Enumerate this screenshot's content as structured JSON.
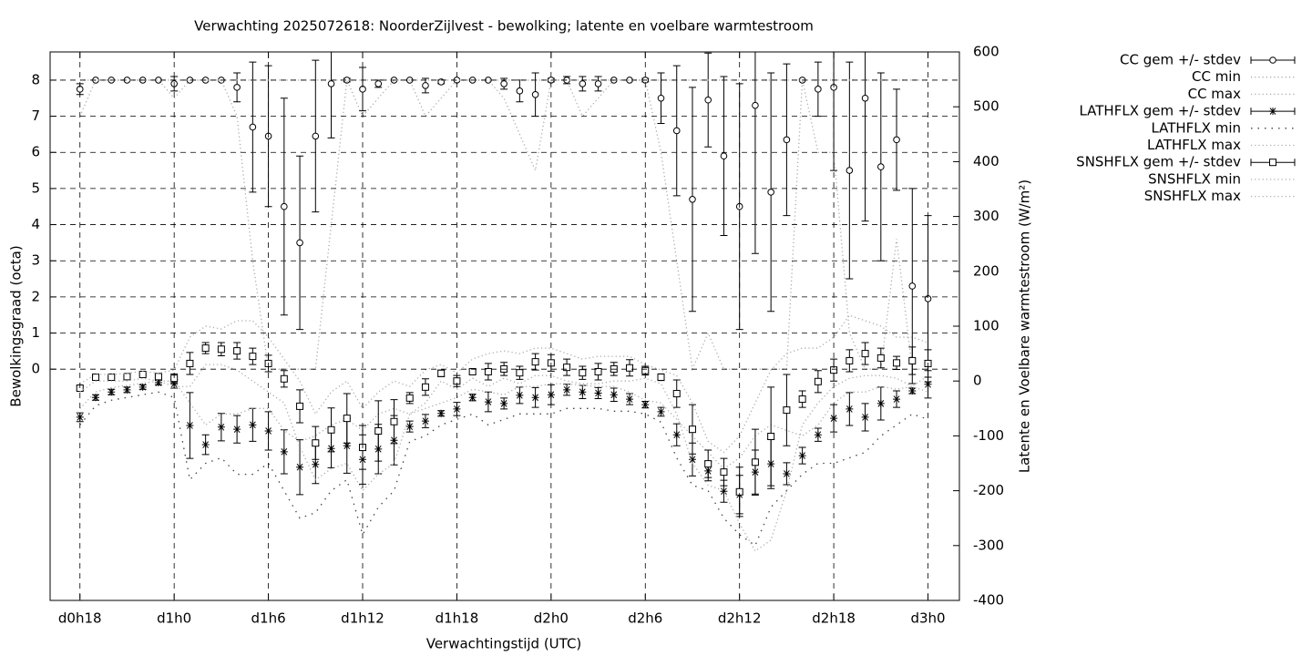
{
  "chart_data": {
    "type": "errorbar",
    "title": "Verwachting 2025072618: NoorderZijlvest - bewolking; latente en voelbare warmtestroom",
    "xlabel": "Verwachtingstijd (UTC)",
    "ylabel": "Bewolkingsgraad (octa)",
    "y2label": "Latente en Voelbare warmtestroom (W/m²)",
    "x": [
      18,
      19,
      20,
      21,
      22,
      23,
      24,
      25,
      26,
      27,
      28,
      29,
      30,
      31,
      32,
      33,
      34,
      35,
      36,
      37,
      38,
      39,
      40,
      41,
      42,
      43,
      44,
      45,
      46,
      47,
      48,
      49,
      50,
      51,
      52,
      53,
      54,
      55,
      56,
      57,
      58,
      59,
      60,
      61,
      62,
      63,
      64,
      65,
      66,
      67,
      68,
      69,
      70,
      71,
      72
    ],
    "xlim": [
      16.1,
      74
    ],
    "xticks": [
      {
        "value": 18,
        "label": "d0h18"
      },
      {
        "value": 24,
        "label": "d1h0"
      },
      {
        "value": 30,
        "label": "d1h6"
      },
      {
        "value": 36,
        "label": "d1h12"
      },
      {
        "value": 42,
        "label": "d1h18"
      },
      {
        "value": 48,
        "label": "d2h0"
      },
      {
        "value": 54,
        "label": "d2h6"
      },
      {
        "value": 60,
        "label": "d2h12"
      },
      {
        "value": 66,
        "label": "d2h18"
      },
      {
        "value": 72,
        "label": "d3h0"
      }
    ],
    "ylim": [
      -6.4,
      8.78
    ],
    "yticks": [
      0,
      1,
      2,
      3,
      4,
      5,
      6,
      7,
      8
    ],
    "y2lim": [
      -400,
      600
    ],
    "y2ticks": [
      -400,
      -300,
      -200,
      -100,
      0,
      100,
      200,
      300,
      400,
      500,
      600
    ],
    "grid": true,
    "legend": "outside-top-right",
    "series": [
      {
        "name": "CC gem +/- stdev",
        "style": "errorbar",
        "marker": "circle",
        "color": "#000000",
        "values": [
          7.75,
          8,
          8,
          8,
          8,
          8,
          7.9,
          8,
          8,
          8,
          7.8,
          6.7,
          6.45,
          4.5,
          3.5,
          6.45,
          7.9,
          8,
          7.75,
          7.9,
          8,
          8,
          7.85,
          7.95,
          8,
          8,
          8,
          7.9,
          7.7,
          7.6,
          8,
          8,
          7.9,
          7.9,
          8,
          8,
          8,
          7.5,
          6.6,
          4.7,
          7.45,
          5.9,
          4.5,
          7.3,
          4.9,
          6.35,
          8,
          7.75,
          7.8,
          5.5,
          7.5,
          5.6,
          6.35,
          2.3,
          1.95
        ],
        "errors": [
          0.15,
          0,
          0,
          0,
          0,
          0,
          0.2,
          0,
          0,
          0,
          0.4,
          1.8,
          1.95,
          3.0,
          2.4,
          2.1,
          1.5,
          0.05,
          0.6,
          0.1,
          0,
          0,
          0.2,
          0.05,
          0,
          0,
          0,
          0.15,
          0.3,
          0.6,
          0.05,
          0.1,
          0.2,
          0.2,
          0,
          0,
          0.05,
          0.7,
          1.8,
          3.1,
          1.3,
          2.2,
          3.4,
          4.1,
          3.3,
          2.1,
          0,
          0.75,
          2.3,
          3.0,
          3.4,
          2.6,
          1.4,
          2.7,
          2.3
        ]
      },
      {
        "name": "CC min",
        "style": "dotted",
        "color": "#aaaaaa",
        "values": [
          7,
          8,
          8,
          8,
          8,
          8,
          7.5,
          8,
          8,
          8,
          7,
          3,
          0,
          0,
          0,
          0,
          4,
          8,
          7,
          7.5,
          8,
          8,
          7,
          7.5,
          8,
          8,
          8,
          7.5,
          6.5,
          5.5,
          8,
          8,
          7,
          7.5,
          8,
          8,
          8,
          6,
          3,
          0,
          1,
          0,
          0,
          0,
          0,
          0,
          8,
          6,
          6,
          1,
          0,
          0,
          3.6,
          0,
          0
        ]
      },
      {
        "name": "CC max",
        "style": "dotted",
        "color": "#aaaaaa",
        "values": [
          8,
          8,
          8,
          8,
          8,
          8,
          8,
          8,
          8,
          8,
          8,
          8,
          8,
          8,
          8,
          8,
          8,
          8,
          8,
          8,
          8,
          8,
          8,
          8,
          8,
          8,
          8,
          8,
          8,
          8,
          8,
          8,
          8,
          8,
          8,
          8,
          8,
          8,
          8,
          8,
          8,
          8,
          8,
          8,
          8,
          8,
          8,
          8,
          8,
          8,
          8,
          8,
          8,
          8,
          8
        ]
      },
      {
        "name": "LATHFLX gem +/- stdev",
        "style": "errorbar",
        "marker": "star",
        "axis": "y2",
        "color": "#000000",
        "values": [
          -66,
          -30,
          -20,
          -16,
          -11,
          -3,
          -5,
          -81,
          -116,
          -84,
          -88,
          -80,
          -91,
          -129,
          -157,
          -152,
          -123,
          -118,
          -143,
          -124,
          -108,
          -83,
          -73,
          -59,
          -51,
          -30,
          -38,
          -41,
          -26,
          -30,
          -25,
          -16,
          -20,
          -22,
          -25,
          -33,
          -43,
          -56,
          -98,
          -143,
          -164,
          -201,
          -207,
          -166,
          -151,
          -169,
          -136,
          -98,
          -68,
          -51,
          -66,
          -41,
          -33,
          -18,
          -6
        ],
        "errors": [
          8,
          5,
          5,
          5,
          4,
          4,
          8,
          60,
          18,
          25,
          25,
          30,
          35,
          40,
          50,
          35,
          35,
          50,
          45,
          45,
          45,
          10,
          12,
          5,
          12,
          6,
          18,
          10,
          15,
          18,
          18,
          10,
          12,
          10,
          12,
          10,
          6,
          8,
          20,
          30,
          18,
          20,
          35,
          40,
          45,
          20,
          15,
          12,
          25,
          30,
          25,
          30,
          15,
          5,
          25
        ]
      },
      {
        "name": "LATHFLX min",
        "style": "loose-dotted",
        "axis": "y2",
        "color": "#444444",
        "values": [
          -80,
          -45,
          -35,
          -30,
          -25,
          -20,
          -30,
          -180,
          -150,
          -140,
          -170,
          -170,
          -150,
          -200,
          -250,
          -240,
          -200,
          -180,
          -280,
          -230,
          -200,
          -110,
          -100,
          -80,
          -70,
          -60,
          -80,
          -70,
          -60,
          -60,
          -60,
          -50,
          -50,
          -50,
          -55,
          -55,
          -60,
          -75,
          -140,
          -190,
          -200,
          -250,
          -280,
          -300,
          -230,
          -200,
          -170,
          -150,
          -150,
          -140,
          -130,
          -100,
          -80,
          -60,
          -70
        ]
      },
      {
        "name": "LATHFLX max",
        "style": "dotted",
        "axis": "y2",
        "color": "#aaaaaa",
        "values": [
          -50,
          -20,
          -12,
          -8,
          -4,
          0,
          0,
          -40,
          -80,
          -60,
          -60,
          -50,
          -50,
          -90,
          -110,
          -100,
          -80,
          -70,
          -90,
          -60,
          -50,
          -60,
          -50,
          -40,
          -30,
          -15,
          -20,
          -25,
          -10,
          -10,
          -5,
          -5,
          -8,
          -10,
          -10,
          -20,
          -35,
          -40,
          -70,
          -100,
          -130,
          -160,
          -140,
          -100,
          -80,
          -90,
          -100,
          -80,
          -40,
          -20,
          -20,
          -10,
          -15,
          -10,
          10
        ]
      },
      {
        "name": "SNSHFLX gem +/- stdev",
        "style": "errorbar",
        "marker": "square",
        "axis": "y2",
        "color": "#000000",
        "values": [
          -13,
          7,
          7,
          8,
          12,
          8,
          5,
          32,
          60,
          58,
          55,
          45,
          32,
          4,
          -46,
          -113,
          -89,
          -68,
          -121,
          -91,
          -74,
          -31,
          -11,
          14,
          0,
          17,
          17,
          22,
          15,
          35,
          33,
          25,
          15,
          17,
          22,
          24,
          19,
          7,
          -23,
          -88,
          -151,
          -166,
          -202,
          -148,
          -101,
          -53,
          -33,
          -1,
          20,
          37,
          50,
          42,
          33,
          37,
          32
        ],
        "errors": [
          4,
          2,
          2,
          2,
          2,
          2,
          8,
          20,
          10,
          12,
          15,
          15,
          15,
          15,
          30,
          30,
          40,
          45,
          40,
          55,
          40,
          10,
          15,
          6,
          10,
          4,
          15,
          12,
          12,
          15,
          15,
          15,
          12,
          15,
          12,
          15,
          8,
          6,
          25,
          45,
          25,
          25,
          45,
          60,
          90,
          65,
          15,
          20,
          20,
          20,
          20,
          18,
          12,
          25,
          25
        ]
      },
      {
        "name": "SNSHFLX min",
        "style": "dotted",
        "axis": "y2",
        "color": "#aaaaaa",
        "values": [
          -20,
          0,
          0,
          0,
          5,
          0,
          -10,
          -10,
          30,
          30,
          20,
          0,
          -20,
          -40,
          -120,
          -180,
          -160,
          -150,
          -200,
          -170,
          -150,
          -60,
          -40,
          0,
          -15,
          5,
          -10,
          5,
          -5,
          10,
          10,
          0,
          -5,
          -5,
          0,
          0,
          5,
          -5,
          -60,
          -150,
          -190,
          -200,
          -260,
          -310,
          -290,
          -200,
          -80,
          -40,
          -10,
          5,
          10,
          10,
          5,
          -10,
          -20
        ]
      },
      {
        "name": "SNSHFLX max",
        "style": "dotted",
        "axis": "y2",
        "color": "#aaaaaa",
        "values": [
          -5,
          12,
          12,
          14,
          18,
          14,
          20,
          80,
          100,
          95,
          110,
          110,
          80,
          40,
          0,
          -60,
          -20,
          0,
          -50,
          -20,
          0,
          -10,
          20,
          30,
          15,
          40,
          50,
          55,
          50,
          60,
          60,
          50,
          40,
          45,
          45,
          45,
          30,
          20,
          10,
          -40,
          -110,
          -130,
          -100,
          -40,
          20,
          50,
          60,
          60,
          80,
          120,
          110,
          100,
          80,
          80,
          70
        ]
      }
    ]
  }
}
